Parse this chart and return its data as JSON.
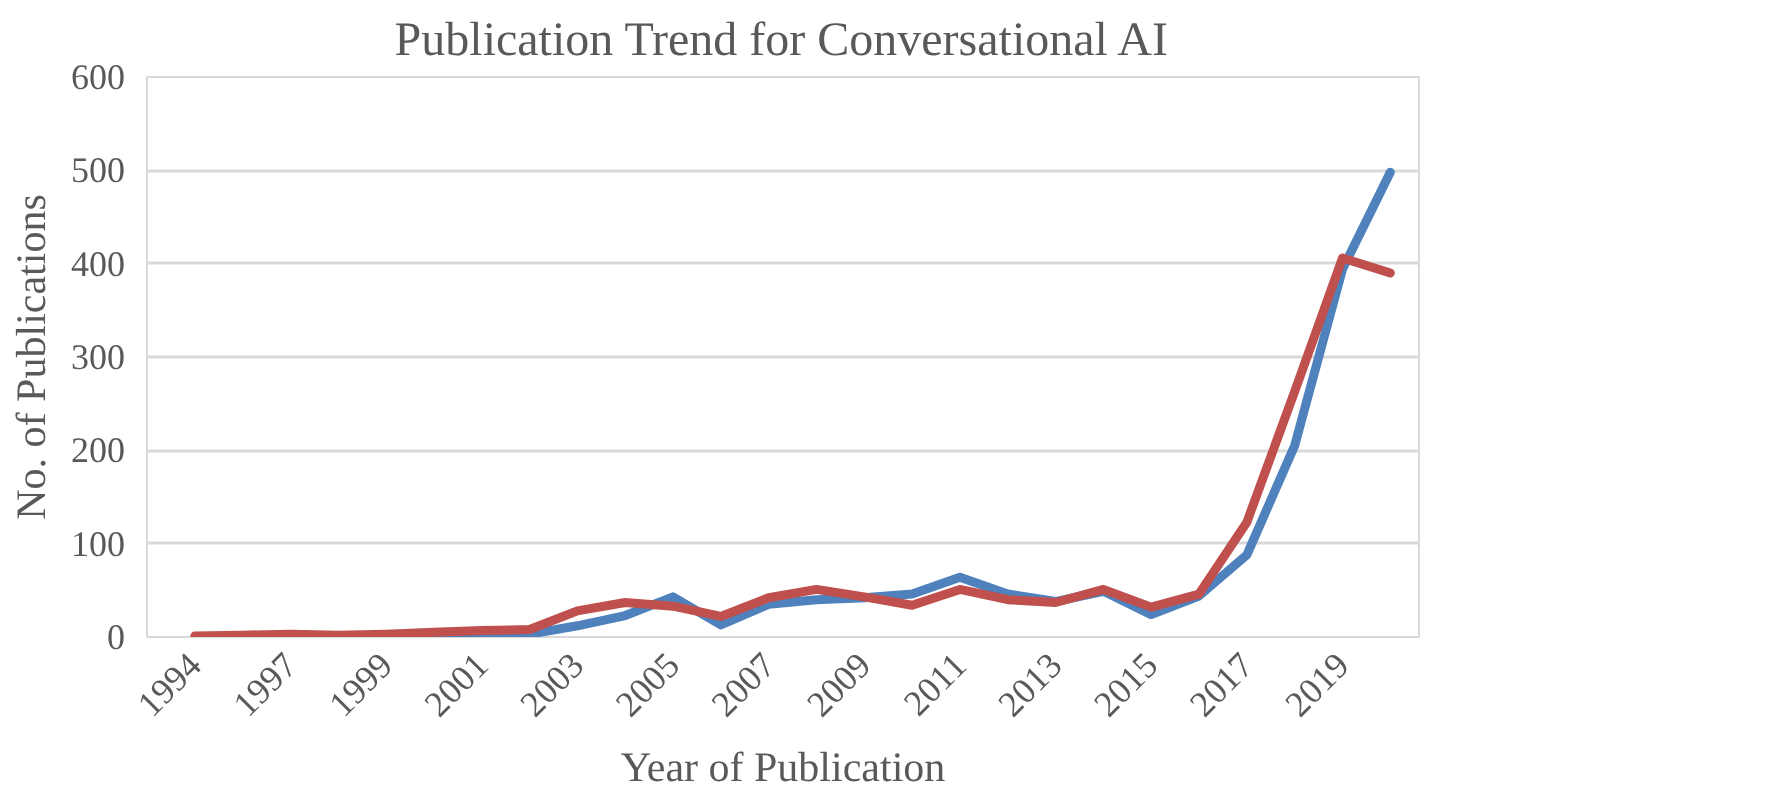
{
  "chart_data": {
    "type": "line",
    "title": "Publication Trend for Conversational AI",
    "xlabel": "Year of Publication",
    "ylabel": "No. of Publications",
    "categories": [
      "1994",
      null,
      "1997",
      null,
      "1999",
      null,
      "2001",
      null,
      "2003",
      null,
      "2005",
      null,
      "2007",
      null,
      "2009",
      null,
      "2011",
      null,
      "2013",
      null,
      "2015",
      null,
      "2017",
      null,
      "2019",
      null
    ],
    "series": [
      {
        "color": "#4f81bd",
        "values": [
          null,
          null,
          null,
          null,
          null,
          2,
          3,
          3,
          12,
          23,
          43,
          13,
          35,
          40,
          42,
          46,
          64,
          46,
          38,
          49,
          24,
          44,
          88,
          205,
          394,
          498
        ]
      },
      {
        "color": "#c0504d",
        "values": [
          1,
          2,
          3,
          2,
          3,
          5,
          7,
          8,
          28,
          37,
          33,
          22,
          42,
          51,
          43,
          34,
          51,
          40,
          37,
          51,
          32,
          46,
          123,
          263,
          406,
          390
        ]
      }
    ],
    "ylim": [
      0,
      600
    ],
    "yticks": [
      0,
      100,
      200,
      300,
      400,
      500,
      600
    ],
    "grid": "y",
    "marker": "none",
    "line_style": "solid"
  }
}
